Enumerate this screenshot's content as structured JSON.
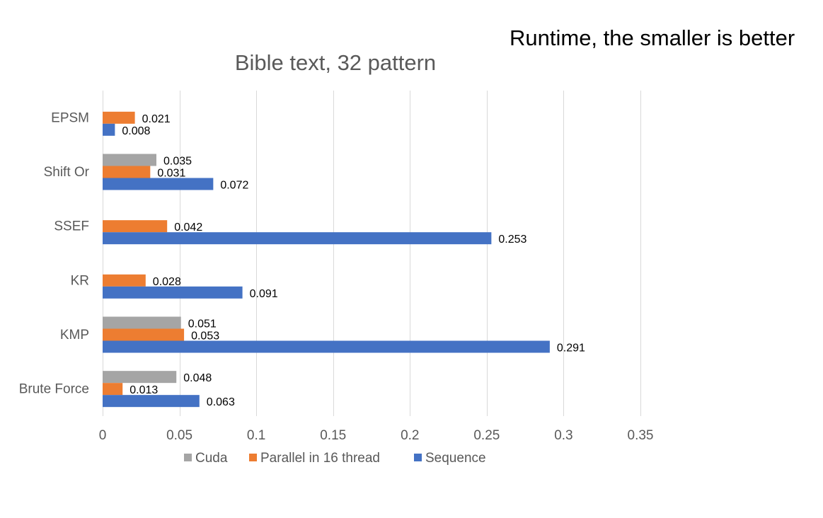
{
  "headline": "Runtime, the smaller is better",
  "chart_data": {
    "type": "bar",
    "orientation": "horizontal",
    "title": "Bible text, 32 pattern",
    "categories": [
      "EPSM",
      "Shift Or",
      "SSEF",
      "KR",
      "KMP",
      "Brute Force"
    ],
    "series": [
      {
        "name": "Cuda",
        "color": "#a5a5a5",
        "values": [
          null,
          0.035,
          null,
          null,
          0.051,
          0.048
        ],
        "labels": [
          null,
          "0.035",
          null,
          null,
          "0.051",
          "0.048"
        ]
      },
      {
        "name": "Parallel in 16 thread",
        "color": "#ed7d31",
        "values": [
          0.021,
          0.031,
          0.042,
          0.028,
          0.053,
          0.013
        ],
        "labels": [
          "0.021",
          "0.031",
          "0.042",
          "0.028",
          "0.053",
          "0.013"
        ]
      },
      {
        "name": "Sequence",
        "color": "#4472c4",
        "values": [
          0.008,
          0.072,
          0.253,
          0.091,
          0.291,
          0.063
        ],
        "labels": [
          "0.008",
          "0.072",
          "0.253",
          "0.091",
          "0.291",
          "0.063"
        ]
      }
    ],
    "xlim": [
      0,
      0.35
    ],
    "xticks": [
      "0",
      "0.05",
      "0.1",
      "0.15",
      "0.2",
      "0.25",
      "0.3",
      "0.35"
    ],
    "xtick_values": [
      0,
      0.05,
      0.1,
      0.15,
      0.2,
      0.25,
      0.3,
      0.35
    ],
    "grid": true,
    "legend_position": "bottom"
  }
}
